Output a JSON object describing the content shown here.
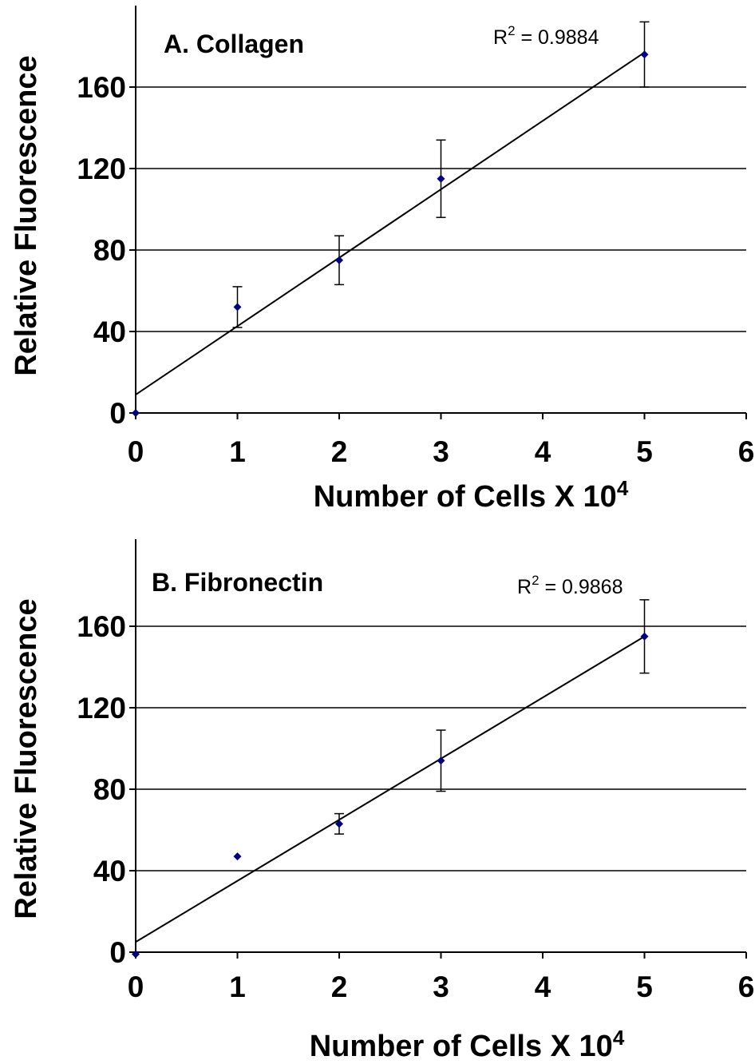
{
  "chart_data": [
    {
      "type": "scatter",
      "title": "A. Collagen",
      "xlabel": "Number of Cells X 10",
      "xlabel_superscript": "4",
      "ylabel": "Relative Fluorescence",
      "xlim": [
        0,
        6
      ],
      "ylim": [
        0,
        200
      ],
      "xticks": [
        "0",
        "1",
        "2",
        "3",
        "4",
        "5",
        "6"
      ],
      "yticks": [
        "0",
        "40",
        "80",
        "120",
        "160"
      ],
      "grid": true,
      "annotation": {
        "label": "R",
        "sup": "2",
        "value": " = 0.9884"
      },
      "points": [
        {
          "x": 0,
          "y": 0,
          "err": 0
        },
        {
          "x": 1,
          "y": 52,
          "err": 10
        },
        {
          "x": 2,
          "y": 75,
          "err": 12
        },
        {
          "x": 3,
          "y": 115,
          "err": 19
        },
        {
          "x": 5,
          "y": 176,
          "err": 16
        }
      ],
      "trendline": {
        "intercept": 9,
        "slope": 33.6
      },
      "marker_color": "#000080"
    },
    {
      "type": "scatter",
      "title": "B. Fibronectin",
      "xlabel": "Number of Cells X 10",
      "xlabel_superscript": "4",
      "ylabel": "Relative Fluorescence",
      "xlim": [
        0,
        6
      ],
      "ylim": [
        0,
        200
      ],
      "xticks": [
        "0",
        "1",
        "2",
        "3",
        "4",
        "5",
        "6"
      ],
      "yticks": [
        "0",
        "40",
        "80",
        "120",
        "160"
      ],
      "grid": true,
      "annotation": {
        "label": "R",
        "sup": "2",
        "value": " = 0.9868"
      },
      "points": [
        {
          "x": 0,
          "y": -1,
          "err": 0
        },
        {
          "x": 1,
          "y": 47,
          "err": 0
        },
        {
          "x": 2,
          "y": 63,
          "err": 5
        },
        {
          "x": 3,
          "y": 94,
          "err": 15
        },
        {
          "x": 5,
          "y": 155,
          "err": 18
        }
      ],
      "trendline": {
        "intercept": 5,
        "slope": 30
      },
      "marker_color": "#000080"
    }
  ]
}
